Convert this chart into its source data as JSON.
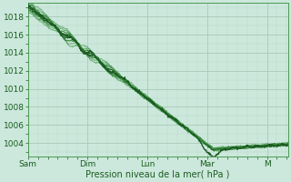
{
  "bg_color": "#cce8dc",
  "plot_bg_color": "#cce8dc",
  "grid_major_color": "#a8c8b8",
  "grid_minor_color": "#b8d8c8",
  "line_dark": "#1a5c20",
  "line_mid": "#2a7a30",
  "line_light": "#4a9a50",
  "xlabel_text": "Pression niveau de la mer( hPa )",
  "x_tick_labels": [
    "Sam",
    "Dim",
    "Lun",
    "Mar",
    "M"
  ],
  "x_tick_pos": [
    0,
    1,
    2,
    3,
    4
  ],
  "y_min": 1002.5,
  "y_max": 1019.5,
  "y_ticks": [
    1004,
    1006,
    1008,
    1010,
    1012,
    1014,
    1016,
    1018
  ],
  "x_max": 4.35,
  "num_points": 500
}
